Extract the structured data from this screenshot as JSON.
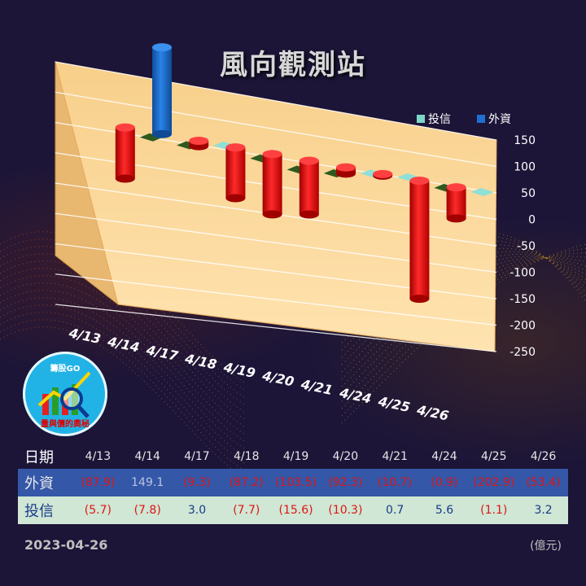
{
  "title": "風向觀測站",
  "logo": {
    "top_text": "籌股GO",
    "motto": "量與價的奧秘"
  },
  "footer": {
    "date": "2023-04-26",
    "unit": "(億元)"
  },
  "colors": {
    "foreign": "#1e6fd0",
    "trust": "#7fd6c6",
    "negative": "#ee1111",
    "panel": "#fbd699"
  },
  "chart_data": {
    "type": "bar",
    "categories": [
      "4/13",
      "4/14",
      "4/17",
      "4/18",
      "4/19",
      "4/20",
      "4/21",
      "4/24",
      "4/25",
      "4/26"
    ],
    "series": [
      {
        "name": "外資",
        "values": [
          -87.9,
          149.1,
          -9.3,
          -87.2,
          -103.5,
          -92.3,
          -10.7,
          -0.9,
          -202.9,
          -53.4
        ]
      },
      {
        "name": "投信",
        "values": [
          -5.7,
          -7.8,
          3.0,
          -7.7,
          -15.6,
          -10.3,
          0.7,
          5.6,
          -1.1,
          3.2
        ]
      }
    ],
    "yticks": [
      "150",
      "100",
      "50",
      "0",
      "-50",
      "-100",
      "-150",
      "-200",
      "-250"
    ],
    "ylim": [
      -250,
      150
    ],
    "legend": [
      "投信",
      "外資"
    ],
    "legend_position": "top-right"
  },
  "table": {
    "date_label": "日期",
    "foreign_label": "外資",
    "trust_label": "投信",
    "foreign_text": [
      "(87.9)",
      "149.1",
      "(9.3)",
      "(87.2)",
      "(103.5)",
      "(92.3)",
      "(10.7)",
      "(0.9)",
      "(202.9)",
      "(53.4)"
    ],
    "trust_text": [
      "(5.7)",
      "(7.8)",
      "3.0",
      "(7.7)",
      "(15.6)",
      "(10.3)",
      "0.7",
      "5.6",
      "(1.1)",
      "3.2"
    ]
  }
}
